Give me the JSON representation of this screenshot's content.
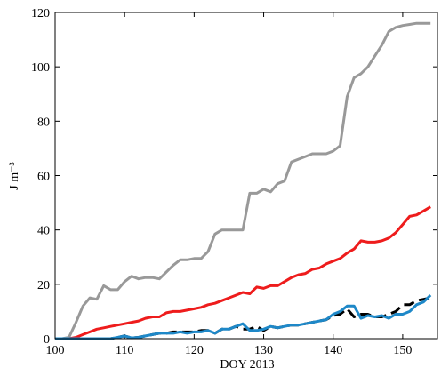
{
  "chart_data": {
    "type": "line",
    "xlabel": "DOY 2013",
    "ylabel": "J m⁻³",
    "x": [
      100,
      101,
      102,
      103,
      104,
      105,
      106,
      107,
      108,
      109,
      110,
      111,
      112,
      113,
      114,
      115,
      116,
      117,
      118,
      119,
      120,
      121,
      122,
      123,
      124,
      125,
      126,
      127,
      128,
      129,
      130,
      131,
      132,
      133,
      134,
      135,
      136,
      137,
      138,
      139,
      140,
      141,
      142,
      143,
      144,
      145,
      146,
      147,
      148,
      149,
      150,
      151,
      152,
      153,
      154
    ],
    "series": [
      {
        "color": "#999999",
        "dash": false,
        "values": [
          0,
          0,
          0.5,
          6,
          12,
          15,
          14.5,
          19.5,
          18,
          18,
          21,
          23,
          22,
          22.5,
          22.5,
          22,
          24.5,
          27,
          29,
          29,
          29.5,
          29.5,
          32,
          38.5,
          40,
          40,
          40,
          40,
          53.5,
          53.5,
          55,
          54,
          57,
          58,
          65,
          66,
          67,
          68,
          68,
          68,
          69,
          71,
          89,
          96,
          97.5,
          100,
          104,
          108,
          113,
          114.5,
          115.2,
          115.6,
          116,
          116,
          116
        ]
      },
      {
        "color": "#ee1c1c",
        "dash": false,
        "values": [
          0,
          0,
          0,
          0.5,
          1.5,
          2.5,
          3.5,
          4,
          4.5,
          5,
          5.5,
          6,
          6.5,
          7.5,
          8,
          8,
          9.5,
          10,
          10,
          10.5,
          11,
          11.5,
          12.5,
          13,
          14,
          15,
          16,
          17,
          16.5,
          19,
          18.5,
          19.5,
          19.5,
          21,
          22.5,
          23.5,
          24,
          25.5,
          26,
          27.5,
          28.5,
          29.5,
          31.5,
          33,
          36,
          35.5,
          35.5,
          36,
          37,
          39,
          42,
          45,
          45.5,
          47,
          48.5
        ]
      },
      {
        "color": "#000000",
        "dash": true,
        "values": [
          0,
          0,
          0,
          0,
          0,
          0,
          0,
          0,
          0,
          0.5,
          1,
          0.3,
          0.5,
          1,
          1.5,
          2,
          2,
          2.5,
          2.5,
          2.5,
          2.5,
          3,
          3,
          2,
          3.5,
          3.5,
          4.5,
          3.5,
          3.5,
          4.5,
          3,
          4.5,
          4,
          4.5,
          5,
          5,
          5.5,
          6,
          6.5,
          7,
          8.5,
          9,
          11,
          8,
          9,
          9,
          8,
          8,
          9,
          10,
          12.5,
          12.5,
          14,
          14.5,
          15
        ]
      },
      {
        "color": "#1e88c8",
        "dash": false,
        "values": [
          0,
          0,
          0,
          0,
          0,
          0,
          0,
          0,
          0,
          0.5,
          1,
          0.3,
          0.5,
          1,
          1.5,
          2,
          2,
          2,
          2.5,
          2,
          2.5,
          2.5,
          3,
          2,
          3.5,
          3.5,
          4.5,
          5.5,
          3,
          3,
          3.5,
          4.5,
          4,
          4.5,
          5,
          5,
          5.5,
          6,
          6.5,
          7,
          9,
          10,
          12,
          12,
          7.5,
          8.5,
          8,
          8.5,
          7.5,
          9,
          9,
          10,
          12.5,
          13.5,
          16
        ]
      }
    ],
    "xlim": [
      100,
      155
    ],
    "xticks": [
      100,
      110,
      120,
      130,
      140,
      150
    ],
    "ylim": [
      0,
      120
    ],
    "yticks": [
      0,
      20,
      40,
      60,
      80,
      100,
      120
    ]
  }
}
